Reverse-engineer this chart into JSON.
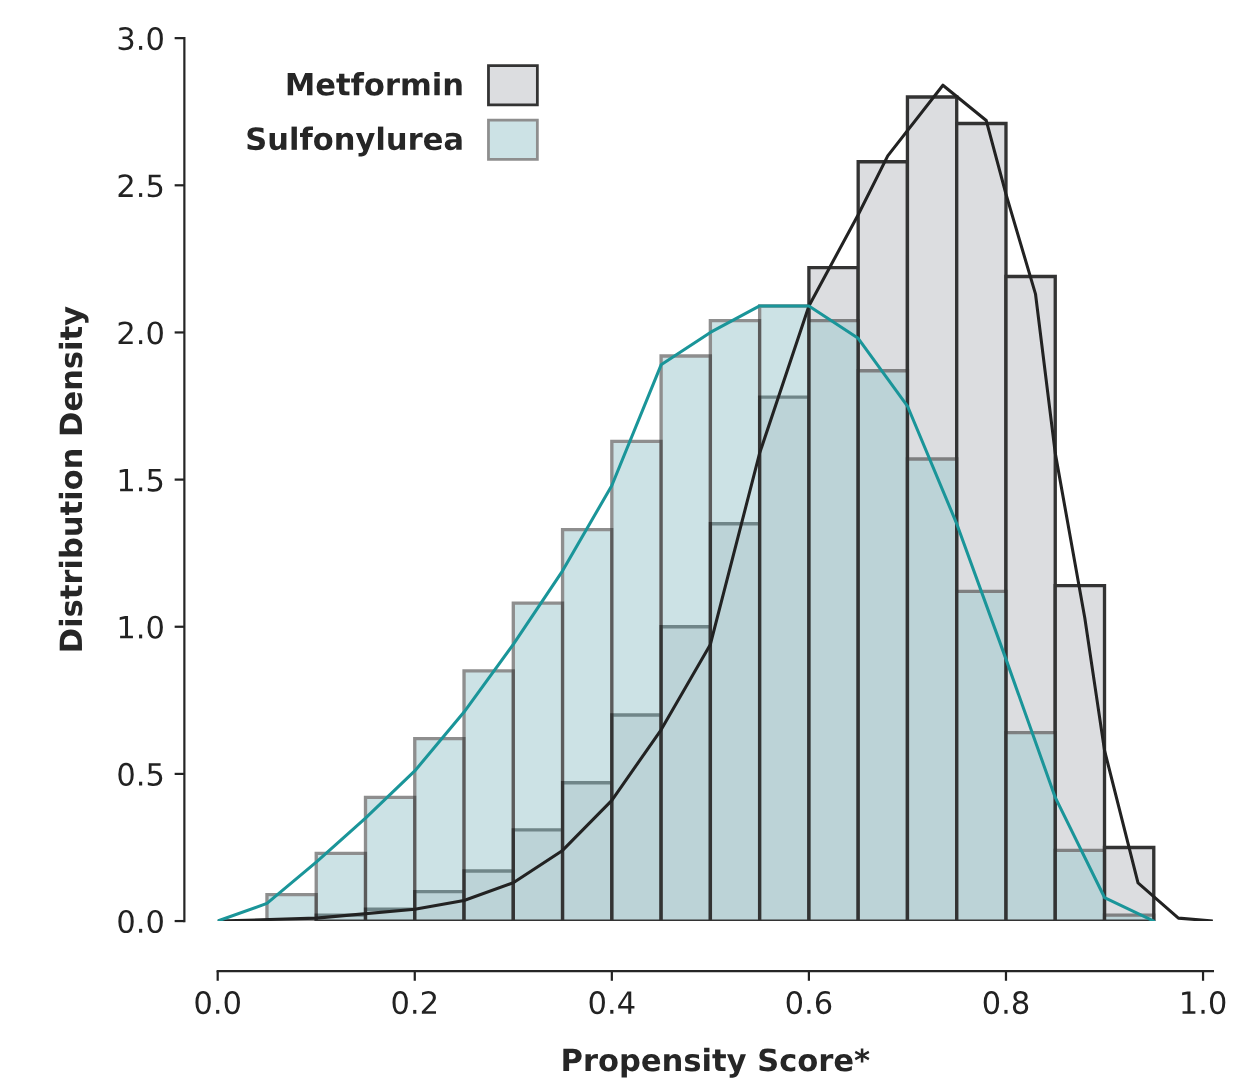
{
  "chart_data": {
    "type": "histogram",
    "xlabel": "Propensity Score*",
    "ylabel": "Distribution Density",
    "bins": [
      0.05,
      0.1,
      0.15,
      0.2,
      0.25,
      0.3,
      0.35,
      0.4,
      0.45,
      0.5,
      0.55,
      0.6,
      0.65,
      0.7,
      0.75,
      0.8,
      0.85,
      0.9,
      0.95
    ],
    "series": [
      {
        "name": "Metformin",
        "color": "#dcdde0",
        "values": [
          null,
          0.02,
          0.04,
          0.1,
          0.17,
          0.31,
          0.47,
          0.7,
          1.0,
          1.35,
          1.78,
          2.22,
          2.58,
          2.8,
          2.71,
          2.19,
          1.14,
          0.25
        ]
      },
      {
        "name": "Sulfonylurea",
        "color": "#a3cbd0",
        "values": [
          0.09,
          0.23,
          0.42,
          0.62,
          0.85,
          1.08,
          1.33,
          1.63,
          1.92,
          2.04,
          2.09,
          2.04,
          1.87,
          1.57,
          1.12,
          0.64,
          0.24,
          0.02
        ]
      },
      {
        "type": "line",
        "color": "#222222",
        "x": [
          0.0,
          0.1,
          0.2,
          0.25,
          0.3,
          0.35,
          0.4,
          0.45,
          0.5,
          0.55,
          0.6,
          0.65,
          0.68,
          0.736,
          0.78,
          0.8,
          0.83,
          0.85,
          0.88,
          0.9,
          0.934,
          0.975,
          1.01
        ],
        "values": [
          0.0,
          0.01,
          0.04,
          0.07,
          0.13,
          0.24,
          0.41,
          0.65,
          0.94,
          1.59,
          2.09,
          2.4,
          2.6,
          2.84,
          2.72,
          2.47,
          2.13,
          1.59,
          1.03,
          0.58,
          0.13,
          0.01,
          0.0
        ]
      },
      {
        "type": "line",
        "color": "#1a9599",
        "x": [
          0.0,
          0.05,
          0.1,
          0.15,
          0.2,
          0.25,
          0.3,
          0.35,
          0.4,
          0.45,
          0.5,
          0.55,
          0.6,
          0.65,
          0.7,
          0.75,
          0.8,
          0.85,
          0.9,
          0.95
        ],
        "values": [
          0.0,
          0.06,
          0.2,
          0.35,
          0.51,
          0.71,
          0.94,
          1.19,
          1.48,
          1.89,
          2.0,
          2.09,
          2.09,
          1.98,
          1.75,
          1.35,
          0.89,
          0.42,
          0.08,
          0.0
        ]
      }
    ],
    "xlim": [
      0.0,
      1.01
    ],
    "xticks": [
      {
        "value": 0.0,
        "label": "0.0"
      },
      0.2,
      0.4,
      0.6,
      0.8,
      {
        "value": 1.0,
        "label": "1.0"
      }
    ],
    "ylim": [
      0.0,
      3.0
    ],
    "yticks": [
      {
        "value": 0.0,
        "label": "0.0"
      },
      0.5,
      {
        "value": 1.0,
        "label": "1.0"
      },
      1.5,
      {
        "value": 2.0,
        "label": "2.0"
      },
      2.5,
      {
        "value": 3.0,
        "label": "3.0"
      }
    ],
    "grid": false,
    "legend": "top left"
  }
}
